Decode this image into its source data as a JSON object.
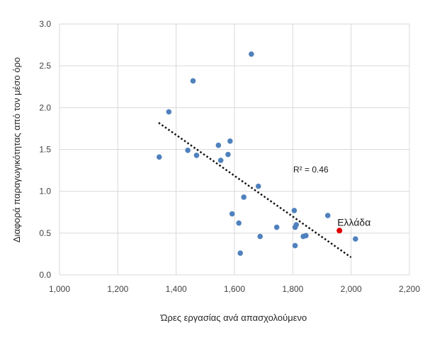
{
  "chart_data": {
    "type": "scatter",
    "xlabel": "Ώρες εργασίας ανά απασχολούμενο",
    "ylabel": "Διαφορά παραγωγικότητας από τον μέσο όρο",
    "xlim": [
      1000,
      2200
    ],
    "ylim": [
      0,
      3.0
    ],
    "x_ticks": [
      "1,000",
      "1,200",
      "1,400",
      "1,600",
      "1,800",
      "2,000",
      "2,200"
    ],
    "y_ticks": [
      "0.0",
      "0.5",
      "1.0",
      "1.5",
      "2.0",
      "2.5",
      "3.0"
    ],
    "grid": true,
    "point_color": "#4f81bd",
    "highlight_color": "#e00000",
    "points": [
      {
        "x": 1342,
        "y": 1.41
      },
      {
        "x": 1375,
        "y": 1.95
      },
      {
        "x": 1440,
        "y": 1.49
      },
      {
        "x": 1458,
        "y": 2.32
      },
      {
        "x": 1470,
        "y": 1.43
      },
      {
        "x": 1545,
        "y": 1.55
      },
      {
        "x": 1553,
        "y": 1.37
      },
      {
        "x": 1578,
        "y": 1.44
      },
      {
        "x": 1585,
        "y": 1.6
      },
      {
        "x": 1592,
        "y": 0.73
      },
      {
        "x": 1615,
        "y": 0.62
      },
      {
        "x": 1620,
        "y": 0.26
      },
      {
        "x": 1632,
        "y": 0.93
      },
      {
        "x": 1658,
        "y": 2.64
      },
      {
        "x": 1682,
        "y": 1.06
      },
      {
        "x": 1688,
        "y": 0.46
      },
      {
        "x": 1745,
        "y": 0.57
      },
      {
        "x": 1805,
        "y": 0.77
      },
      {
        "x": 1808,
        "y": 0.57
      },
      {
        "x": 1808,
        "y": 0.35
      },
      {
        "x": 1812,
        "y": 0.6
      },
      {
        "x": 1836,
        "y": 0.46
      },
      {
        "x": 1845,
        "y": 0.47
      },
      {
        "x": 1920,
        "y": 0.71
      },
      {
        "x": 2015,
        "y": 0.43
      }
    ],
    "highlight": {
      "label": "Ελλάδα",
      "x": 1960,
      "y": 0.53
    },
    "trendline": {
      "style": "dotted",
      "from": {
        "x": 1340,
        "y": 1.82
      },
      "to": {
        "x": 2000,
        "y": 0.21
      }
    },
    "annotation": "R² = 0.46"
  }
}
